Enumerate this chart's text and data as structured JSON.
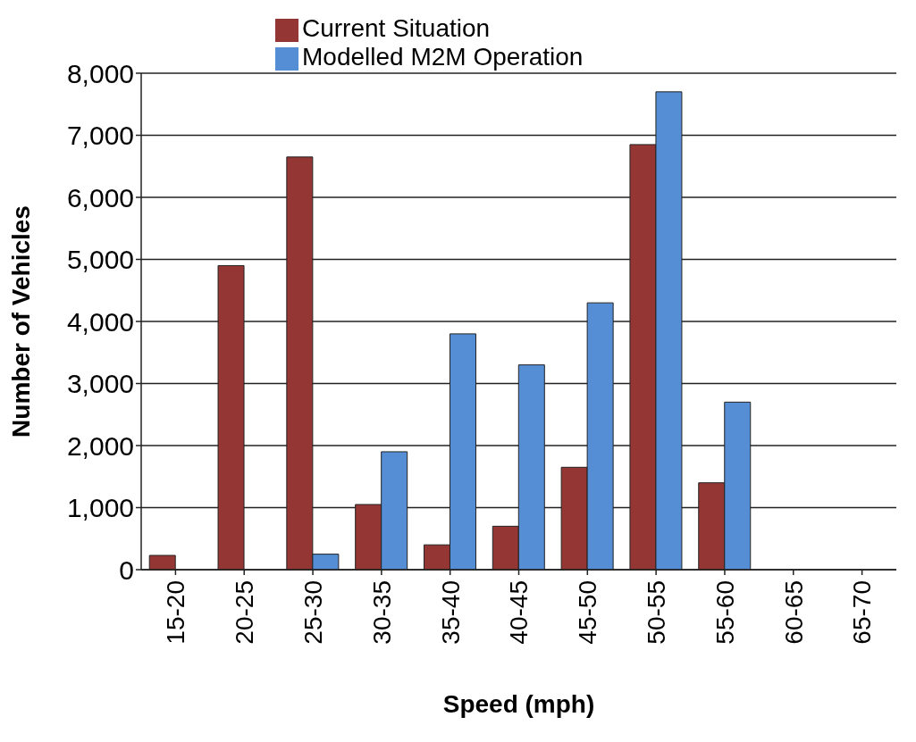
{
  "chart_data": {
    "type": "bar",
    "xlabel": "Speed (mph)",
    "ylabel": "Number of Vehicles",
    "categories": [
      "15-20",
      "20-25",
      "25-30",
      "30-35",
      "35-40",
      "40-45",
      "45-50",
      "50-55",
      "55-60",
      "60-65",
      "65-70"
    ],
    "series": [
      {
        "name": "Current Situation",
        "color": "#943634",
        "values": [
          230,
          4900,
          6650,
          1050,
          400,
          700,
          1650,
          6850,
          1400,
          0,
          0
        ]
      },
      {
        "name": "Modelled M2M Operation",
        "color": "#558ed5",
        "values": [
          0,
          0,
          250,
          1900,
          3800,
          3300,
          4300,
          7700,
          2700,
          0,
          0
        ]
      }
    ],
    "ylim": [
      0,
      8000
    ],
    "yticks": [
      {
        "value": 0,
        "label": "0"
      },
      {
        "value": 1000,
        "label": "1,000"
      },
      {
        "value": 2000,
        "label": "2,000"
      },
      {
        "value": 3000,
        "label": "3,000"
      },
      {
        "value": 4000,
        "label": "4,000"
      },
      {
        "value": 5000,
        "label": "5,000"
      },
      {
        "value": 6000,
        "label": "6,000"
      },
      {
        "value": 7000,
        "label": "7,000"
      },
      {
        "value": 8000,
        "label": "8,000"
      }
    ],
    "grid": "y",
    "legend": "top"
  }
}
